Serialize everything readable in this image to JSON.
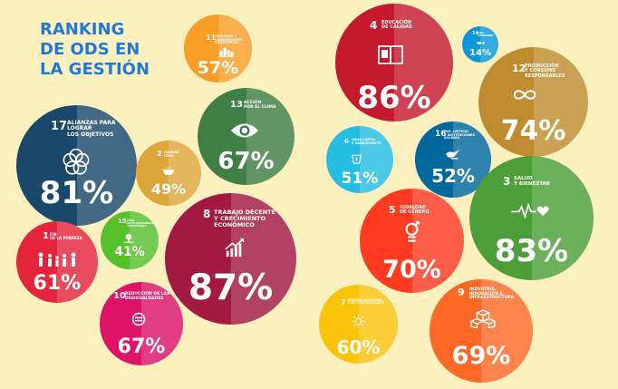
{
  "title": [
    "RANKING",
    "DE ODS EN",
    "LA GESTIÓN"
  ],
  "ods": [
    {
      "key": "o11",
      "number": "11",
      "label": "Ciudades y\ncomunidades\nsostenibles",
      "percent": "57%",
      "color": "#f99d26",
      "icon": "city-icon"
    },
    {
      "key": "o17",
      "number": "17",
      "label": "Alianzas para\nlograr\nlos objetivos",
      "percent": "81%",
      "color": "#19486a",
      "icon": "flower-icon"
    },
    {
      "key": "o2",
      "number": "2",
      "label": "Hambre\ncero",
      "percent": "49%",
      "color": "#dda63a",
      "icon": "bowl-icon"
    },
    {
      "key": "o13",
      "number": "13",
      "label": "Acción\npor el clima",
      "percent": "67%",
      "color": "#3f7e44",
      "icon": "eye-globe-icon"
    },
    {
      "key": "o1",
      "number": "1",
      "label": "Fin\nde la pobreza",
      "percent": "61%",
      "color": "#e5243b",
      "icon": "family-icon"
    },
    {
      "key": "o15",
      "number": "15",
      "label": "Vida\nde ecosistemas\nterrestres",
      "percent": "41%",
      "color": "#56c02b",
      "icon": "tree-icon"
    },
    {
      "key": "o8",
      "number": "8",
      "label": "Trabajo decente\ny crecimiento\neconómico",
      "percent": "87%",
      "color": "#a21942",
      "icon": "growth-chart-icon"
    },
    {
      "key": "o10",
      "number": "10",
      "label": "Reducción de las\ndesigualdades",
      "percent": "67%",
      "color": "#dd1367",
      "icon": "equality-icon"
    },
    {
      "key": "o4",
      "number": "4",
      "label": "Educación\nde calidad",
      "percent": "86%",
      "color": "#c5192d",
      "icon": "book-icon"
    },
    {
      "key": "o14",
      "number": "14",
      "label": "Vida\nsubmarina",
      "percent": "14%",
      "color": "#0a97d9",
      "icon": "fish-icon"
    },
    {
      "key": "o12",
      "number": "12",
      "label": "Producción\ny consumo\nresponsables",
      "percent": "74%",
      "color": "#bf8b2e",
      "icon": "infinity-icon"
    },
    {
      "key": "o6",
      "number": "6",
      "label": "Agua limpia\ny saneamiento",
      "percent": "51%",
      "color": "#26bde2",
      "icon": "water-icon"
    },
    {
      "key": "o16",
      "number": "16",
      "label": "Paz, justicia\ne instituciones\nsólidas",
      "percent": "52%",
      "color": "#00689d",
      "icon": "dove-icon"
    },
    {
      "key": "o3",
      "number": "3",
      "label": "Salud\ny bienestar",
      "percent": "83%",
      "color": "#4c9f38",
      "icon": "heartbeat-icon"
    },
    {
      "key": "o5",
      "number": "5",
      "label": "Igualdad\nde género",
      "percent": "70%",
      "color": "#ff3a21",
      "icon": "gender-icon"
    },
    {
      "key": "o7",
      "number": "7",
      "label": "Energía asequible\ny no contaminante",
      "percent": "60%",
      "color": "#fcc30b",
      "icon": "sun-icon"
    },
    {
      "key": "o9",
      "number": "9",
      "label": "Industria,\ninnovación e\ninfraestructura",
      "percent": "69%",
      "color": "#fd6925",
      "icon": "cubes-icon"
    }
  ]
}
